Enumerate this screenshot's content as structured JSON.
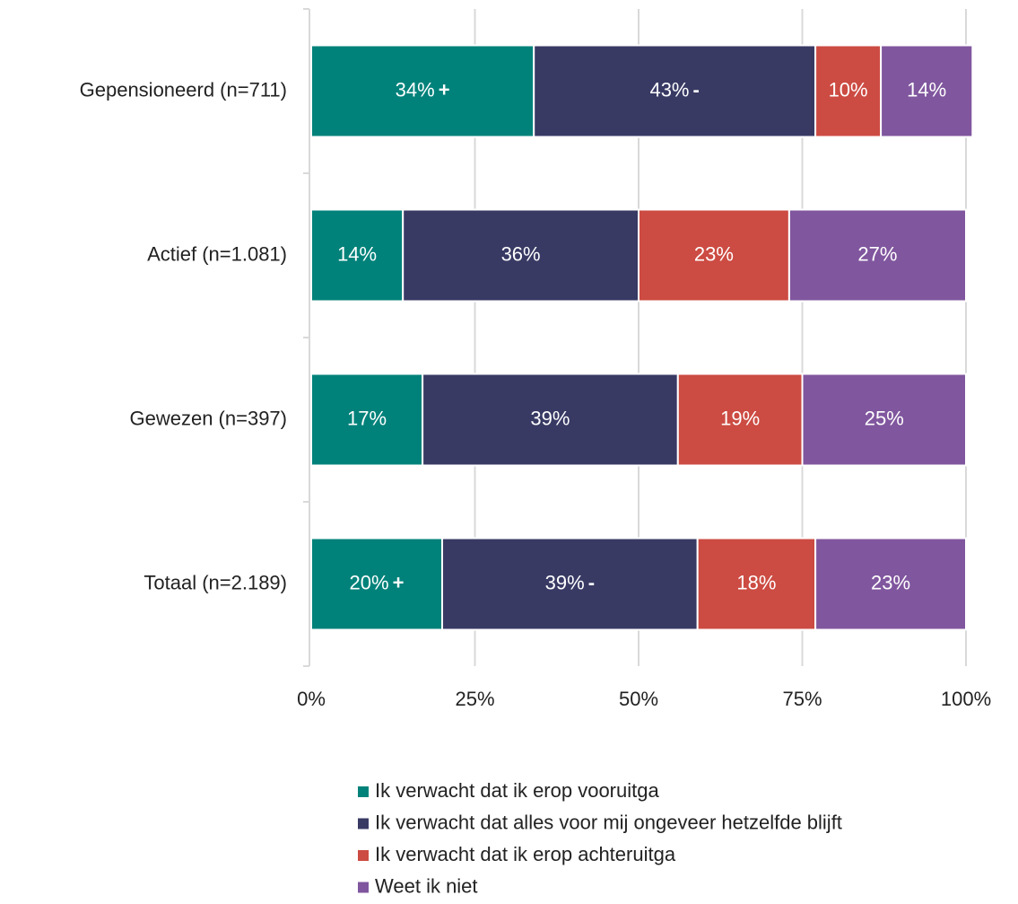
{
  "chart_data": {
    "type": "stacked-bar-horizontal",
    "categories": [
      "Gepensioneerd (n=711)",
      "Actief (n=1.081)",
      "Gewezen (n=397)",
      "Totaal (n=2.189)"
    ],
    "series": [
      {
        "name": "Ik verwacht dat ik erop vooruitga",
        "color": "#00827a",
        "values": [
          34,
          14,
          17,
          20
        ],
        "value_labels": [
          "34%",
          "14%",
          "17%",
          "20%"
        ],
        "markers": [
          "+",
          null,
          null,
          "+"
        ]
      },
      {
        "name": "Ik verwacht dat alles voor mij ongeveer hetzelfde blijft",
        "color": "#383a64",
        "values": [
          43,
          36,
          39,
          39
        ],
        "value_labels": [
          "43%",
          "36%",
          "39%",
          "39%"
        ],
        "markers": [
          "-",
          null,
          null,
          "-"
        ]
      },
      {
        "name": "Ik verwacht dat ik erop achteruitga",
        "color": "#cc4b42",
        "values": [
          10,
          23,
          19,
          18
        ],
        "value_labels": [
          "10%",
          "23%",
          "19%",
          "18%"
        ],
        "markers": [
          null,
          null,
          null,
          null
        ]
      },
      {
        "name": "Weet ik niet",
        "color": "#80569e",
        "values": [
          14,
          27,
          25,
          23
        ],
        "value_labels": [
          "14%",
          "27%",
          "25%",
          "23%"
        ],
        "markers": [
          null,
          null,
          null,
          null
        ]
      }
    ],
    "xlim": [
      0,
      100
    ],
    "xticks": [
      {
        "value": 0,
        "label": "0%"
      },
      {
        "value": 25,
        "label": "25%"
      },
      {
        "value": 50,
        "label": "50%"
      },
      {
        "value": 75,
        "label": "75%"
      },
      {
        "value": 100,
        "label": "100%"
      }
    ],
    "grid": true,
    "legend": "bottom"
  }
}
